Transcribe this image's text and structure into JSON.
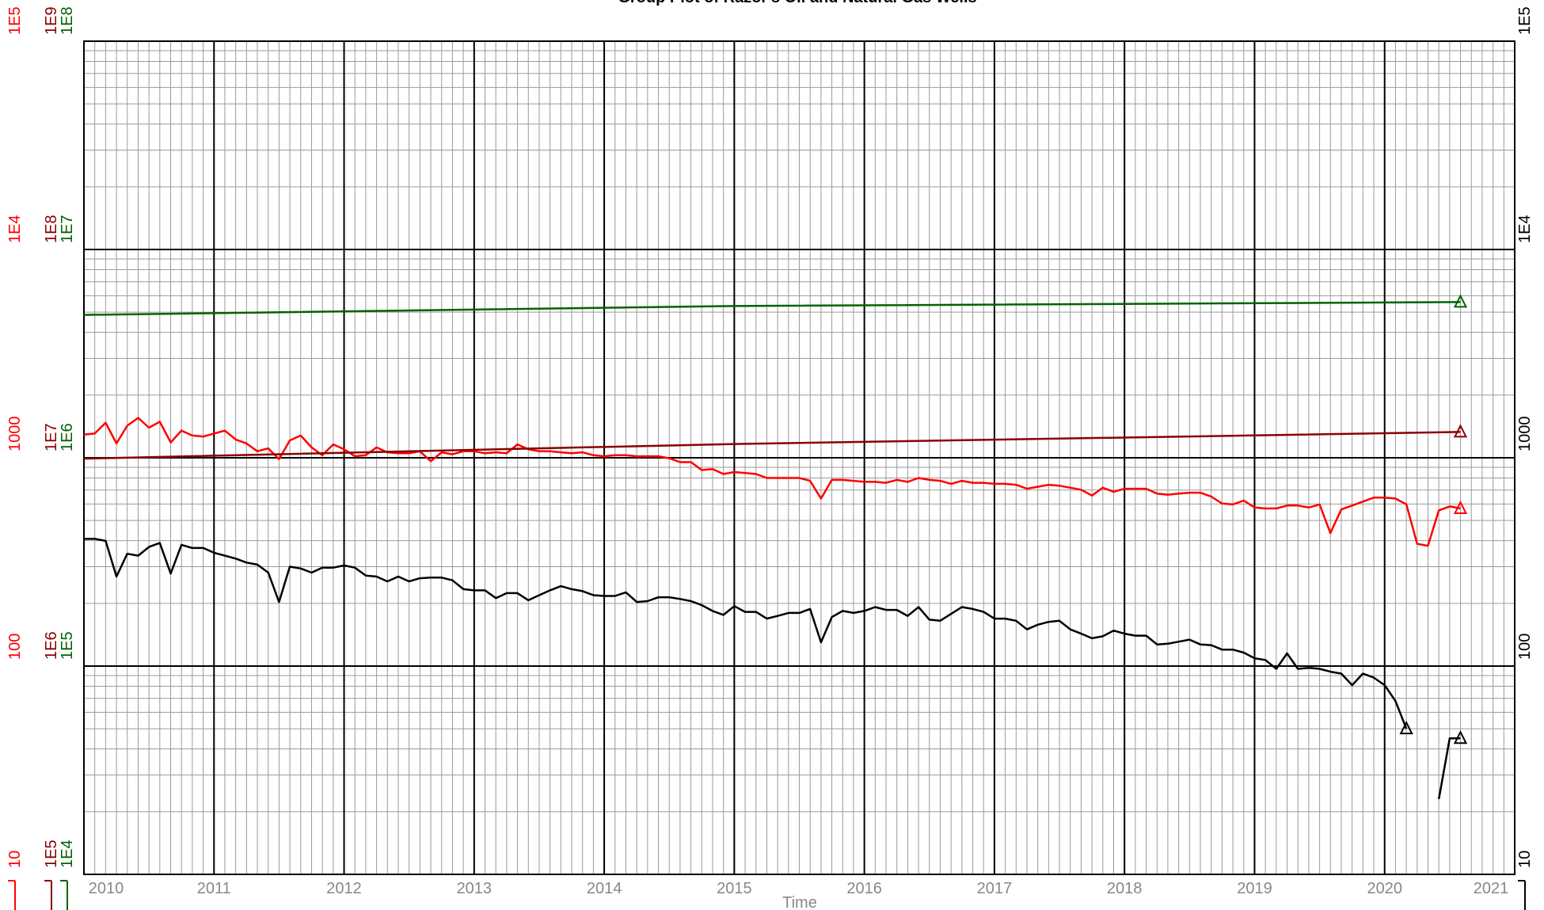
{
  "chart_data": {
    "type": "line",
    "title": "Group Plot of Razor's Oil and Natural Gas Wells",
    "xlabel": "Time",
    "xlim": [
      2010,
      2021
    ],
    "xticks": [
      2010,
      2011,
      2012,
      2013,
      2014,
      2015,
      2016,
      2017,
      2018,
      2019,
      2020,
      2021
    ],
    "log_scale": true,
    "grid": true,
    "ylim": [
      10,
      100000
    ],
    "yticks": [
      10,
      100,
      1000,
      {
        "value": 10000,
        "label": "1E4"
      },
      {
        "value": 100000,
        "label": "1E5"
      }
    ],
    "y2lim": [
      10,
      100000
    ],
    "y2ticks": [
      10,
      100,
      1000,
      {
        "value": 10000,
        "label": "1E4"
      },
      {
        "value": 100000,
        "label": "1E5"
      }
    ],
    "y3lim": [
      100000,
      1000000000
    ],
    "y3ticks": [
      {
        "value": 100000,
        "label": "1E5"
      },
      {
        "value": 1000000,
        "label": "1E6"
      },
      {
        "value": 10000000,
        "label": "1E7"
      },
      {
        "value": 100000000,
        "label": "1E8"
      },
      {
        "value": 1000000000,
        "label": "1E9"
      }
    ],
    "y4lim": [
      10000,
      100000000
    ],
    "y4ticks": [
      {
        "value": 10000,
        "label": "1E4"
      },
      {
        "value": 100000,
        "label": "1E5"
      },
      {
        "value": 1000000,
        "label": "1E6"
      },
      {
        "value": 10000000,
        "label": "1E7"
      },
      {
        "value": 100000000,
        "label": "1E8"
      }
    ],
    "x": [
      2010,
      2010.083,
      2010.167,
      2010.25,
      2010.333,
      2010.417,
      2010.5,
      2010.583,
      2010.667,
      2010.75,
      2010.833,
      2010.917,
      2011,
      2011.083,
      2011.167,
      2011.25,
      2011.333,
      2011.417,
      2011.5,
      2011.583,
      2011.667,
      2011.75,
      2011.833,
      2011.917,
      2012,
      2012.083,
      2012.167,
      2012.25,
      2012.333,
      2012.417,
      2012.5,
      2012.583,
      2012.667,
      2012.75,
      2012.833,
      2012.917,
      2013,
      2013.083,
      2013.167,
      2013.25,
      2013.333,
      2013.417,
      2013.5,
      2013.583,
      2013.667,
      2013.75,
      2013.833,
      2013.917,
      2014,
      2014.083,
      2014.167,
      2014.25,
      2014.333,
      2014.417,
      2014.5,
      2014.583,
      2014.667,
      2014.75,
      2014.833,
      2014.917,
      2015,
      2015.083,
      2015.167,
      2015.25,
      2015.333,
      2015.417,
      2015.5,
      2015.583,
      2015.667,
      2015.75,
      2015.833,
      2015.917,
      2016,
      2016.083,
      2016.167,
      2016.25,
      2016.333,
      2016.417,
      2016.5,
      2016.583,
      2016.667,
      2016.75,
      2016.833,
      2016.917,
      2017,
      2017.083,
      2017.167,
      2017.25,
      2017.333,
      2017.417,
      2017.5,
      2017.583,
      2017.667,
      2017.75,
      2017.833,
      2017.917,
      2018,
      2018.083,
      2018.167,
      2018.25,
      2018.333,
      2018.417,
      2018.5,
      2018.583,
      2018.667,
      2018.75,
      2018.833,
      2018.917,
      2019,
      2019.083,
      2019.167,
      2019.25,
      2019.333,
      2019.417,
      2019.5,
      2019.583,
      2019.667,
      2019.75,
      2019.833,
      2019.917,
      2020,
      2020.083,
      2020.167,
      2020.25,
      2020.333,
      2020.417,
      2020.5,
      2020.583
    ],
    "series": [
      {
        "color": "#000000",
        "axis": "y2",
        "values": [
          408,
          408,
          399,
          269,
          346,
          339,
          373,
          390,
          278,
          382,
          369,
          369,
          350,
          339,
          328,
          314,
          307,
          281,
          203,
          300,
          294,
          281,
          297,
          297,
          304,
          297,
          272,
          269,
          255,
          269,
          255,
          264,
          266,
          266,
          258,
          234,
          231,
          231,
          212,
          224,
          224,
          207,
          219,
          231,
          242,
          234,
          229,
          219,
          217,
          217,
          226,
          203,
          205,
          214,
          214,
          210,
          205,
          196,
          184,
          176,
          194,
          182,
          182,
          169,
          174,
          180,
          180,
          188,
          130,
          172,
          184,
          180,
          184,
          192,
          186,
          186,
          174,
          192,
          167,
          165,
          178,
          192,
          188,
          182,
          169,
          169,
          165,
          150,
          158,
          163,
          165,
          150,
          143,
          136,
          139,
          148,
          143,
          140,
          140,
          127,
          128,
          131,
          134,
          127,
          126,
          120,
          120,
          116,
          109,
          107,
          97,
          115,
          97,
          98,
          97,
          94,
          92,
          81,
          92,
          88,
          81,
          68,
          50,
          null,
          null,
          23,
          45,
          45
        ]
      },
      {
        "color": "#ff0000",
        "axis": "y",
        "values": [
          1292,
          1307,
          1473,
          1172,
          1426,
          1555,
          1395,
          1489,
          1185,
          1350,
          1279,
          1265,
          1307,
          1350,
          1224,
          1172,
          1074,
          1110,
          985,
          1211,
          1279,
          1122,
          1028,
          1159,
          1098,
          1017,
          1028,
          1122,
          1062,
          1051,
          1051,
          1074,
          963,
          1062,
          1039,
          1074,
          1074,
          1051,
          1062,
          1051,
          1159,
          1098,
          1074,
          1074,
          1062,
          1051,
          1062,
          1028,
          1017,
          1028,
          1028,
          1017,
          1017,
          1017,
          995,
          953,
          953,
          873,
          883,
          836,
          854,
          845,
          836,
          800,
          800,
          800,
          800,
          775,
          637,
          783,
          783,
          775,
          766,
          766,
          758,
          783,
          766,
          800,
          783,
          775,
          750,
          775,
          758,
          758,
          750,
          750,
          742,
          710,
          726,
          742,
          734,
          718,
          702,
          658,
          718,
          687,
          710,
          710,
          710,
          673,
          665,
          673,
          680,
          680,
          651,
          603,
          597,
          623,
          577,
          571,
          571,
          590,
          590,
          577,
          597,
          435,
          565,
          590,
          616,
          644,
          644,
          637,
          597,
          386,
          378,
          559,
          584,
          571
        ]
      },
      {
        "color": "#8b0000",
        "axis": "y3",
        "x": [
          2010,
          2015,
          2020.583
        ],
        "values": [
          9900000,
          11650000,
          13300000
        ]
      },
      {
        "color": "#006400",
        "axis": "y4",
        "x": [
          2010,
          2015,
          2020.583
        ],
        "values": [
          4850000,
          5350000,
          5590000
        ]
      }
    ]
  }
}
